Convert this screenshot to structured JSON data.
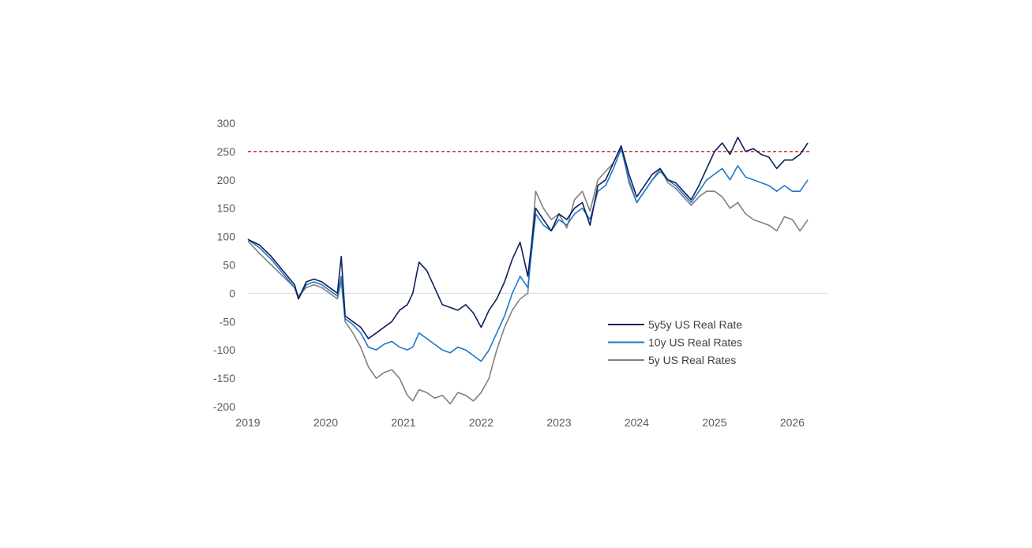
{
  "chart_data": {
    "type": "line",
    "title": "",
    "xlabel": "",
    "ylabel": "",
    "xlim": [
      2019.0,
      2026.25
    ],
    "ylim": [
      -200,
      300
    ],
    "yticks": [
      "300",
      "250",
      "200",
      "150",
      "100",
      "50",
      "0",
      "-50",
      "-100",
      "-150",
      "-200"
    ],
    "xticks": [
      "2019",
      "2020",
      "2021",
      "2022",
      "2023",
      "2024",
      "2025",
      "2026"
    ],
    "grid": false,
    "zero_line": true,
    "reference_line": {
      "value": 250,
      "style": "dashed",
      "color": "#c00000"
    },
    "legend": {
      "placement": "lower-right-inside"
    },
    "series": [
      {
        "name": "5y5y US Real Rate",
        "color": "#0b1f5c",
        "x": [
          2019.0,
          2019.15,
          2019.3,
          2019.45,
          2019.6,
          2019.65,
          2019.75,
          2019.85,
          2019.95,
          2020.05,
          2020.15,
          2020.2,
          2020.25,
          2020.35,
          2020.45,
          2020.55,
          2020.65,
          2020.75,
          2020.85,
          2020.95,
          2021.05,
          2021.12,
          2021.2,
          2021.3,
          2021.4,
          2021.5,
          2021.6,
          2021.7,
          2021.8,
          2021.9,
          2022.0,
          2022.1,
          2022.2,
          2022.3,
          2022.4,
          2022.5,
          2022.6,
          2022.7,
          2022.8,
          2022.9,
          2023.0,
          2023.1,
          2023.2,
          2023.3,
          2023.4,
          2023.5,
          2023.6,
          2023.7,
          2023.8,
          2023.9,
          2024.0,
          2024.1,
          2024.2,
          2024.3,
          2024.4,
          2024.5,
          2024.6,
          2024.7,
          2024.8,
          2024.9,
          2025.0,
          2025.1,
          2025.2,
          2025.3,
          2025.4,
          2025.5,
          2025.6,
          2025.7,
          2025.8,
          2025.9,
          2026.0,
          2026.1,
          2026.2
        ],
        "values": [
          95,
          85,
          65,
          40,
          15,
          -10,
          20,
          25,
          20,
          10,
          0,
          65,
          -40,
          -50,
          -60,
          -80,
          -70,
          -60,
          -50,
          -30,
          -20,
          0,
          55,
          40,
          10,
          -20,
          -25,
          -30,
          -20,
          -35,
          -60,
          -30,
          -10,
          20,
          60,
          90,
          30,
          150,
          130,
          110,
          140,
          130,
          150,
          160,
          120,
          190,
          200,
          230,
          260,
          210,
          170,
          190,
          210,
          220,
          200,
          195,
          180,
          165,
          190,
          220,
          250,
          265,
          245,
          275,
          250,
          255,
          245,
          240,
          220,
          235,
          235,
          245,
          265
        ]
      },
      {
        "name": "10y US Real Rates",
        "color": "#1e78c8",
        "x": [
          2019.0,
          2019.15,
          2019.3,
          2019.45,
          2019.6,
          2019.65,
          2019.75,
          2019.85,
          2019.95,
          2020.05,
          2020.15,
          2020.2,
          2020.25,
          2020.35,
          2020.45,
          2020.55,
          2020.65,
          2020.75,
          2020.85,
          2020.95,
          2021.05,
          2021.12,
          2021.2,
          2021.3,
          2021.4,
          2021.5,
          2021.6,
          2021.7,
          2021.8,
          2021.9,
          2022.0,
          2022.1,
          2022.2,
          2022.3,
          2022.4,
          2022.5,
          2022.6,
          2022.7,
          2022.8,
          2022.9,
          2023.0,
          2023.1,
          2023.2,
          2023.3,
          2023.4,
          2023.5,
          2023.6,
          2023.7,
          2023.8,
          2023.9,
          2024.0,
          2024.1,
          2024.2,
          2024.3,
          2024.4,
          2024.5,
          2024.6,
          2024.7,
          2024.8,
          2024.9,
          2025.0,
          2025.1,
          2025.2,
          2025.3,
          2025.4,
          2025.5,
          2025.6,
          2025.7,
          2025.8,
          2025.9,
          2026.0,
          2026.1,
          2026.2
        ],
        "values": [
          95,
          80,
          60,
          35,
          10,
          -10,
          15,
          20,
          15,
          5,
          -5,
          30,
          -45,
          -55,
          -70,
          -95,
          -100,
          -90,
          -85,
          -95,
          -100,
          -95,
          -70,
          -80,
          -90,
          -100,
          -105,
          -95,
          -100,
          -110,
          -120,
          -100,
          -70,
          -40,
          0,
          30,
          10,
          140,
          120,
          110,
          130,
          120,
          140,
          150,
          130,
          180,
          190,
          220,
          255,
          200,
          160,
          180,
          200,
          215,
          200,
          190,
          175,
          160,
          180,
          200,
          210,
          220,
          200,
          225,
          205,
          200,
          195,
          190,
          180,
          190,
          180,
          180,
          200
        ]
      },
      {
        "name": "5y US Real Rates",
        "color": "#808080",
        "x": [
          2019.0,
          2019.15,
          2019.3,
          2019.45,
          2019.6,
          2019.65,
          2019.75,
          2019.85,
          2019.95,
          2020.05,
          2020.15,
          2020.2,
          2020.25,
          2020.35,
          2020.45,
          2020.55,
          2020.65,
          2020.75,
          2020.85,
          2020.95,
          2021.05,
          2021.12,
          2021.2,
          2021.3,
          2021.4,
          2021.5,
          2021.6,
          2021.7,
          2021.8,
          2021.9,
          2022.0,
          2022.1,
          2022.2,
          2022.3,
          2022.4,
          2022.5,
          2022.6,
          2022.7,
          2022.8,
          2022.9,
          2023.0,
          2023.1,
          2023.2,
          2023.3,
          2023.4,
          2023.5,
          2023.6,
          2023.7,
          2023.8,
          2023.9,
          2024.0,
          2024.1,
          2024.2,
          2024.3,
          2024.4,
          2024.5,
          2024.6,
          2024.7,
          2024.8,
          2024.9,
          2025.0,
          2025.1,
          2025.2,
          2025.3,
          2025.4,
          2025.5,
          2025.6,
          2025.7,
          2025.8,
          2025.9,
          2026.0,
          2026.1,
          2026.2
        ],
        "values": [
          92,
          70,
          50,
          30,
          10,
          -5,
          10,
          15,
          10,
          0,
          -10,
          20,
          -50,
          -70,
          -95,
          -130,
          -150,
          -140,
          -135,
          -150,
          -180,
          -190,
          -170,
          -175,
          -185,
          -180,
          -195,
          -175,
          -180,
          -190,
          -175,
          -150,
          -100,
          -60,
          -30,
          -10,
          0,
          180,
          150,
          130,
          140,
          115,
          165,
          180,
          145,
          200,
          215,
          230,
          260,
          195,
          160,
          180,
          200,
          220,
          195,
          185,
          170,
          155,
          170,
          180,
          180,
          170,
          150,
          160,
          140,
          130,
          125,
          120,
          110,
          135,
          130,
          110,
          130
        ]
      }
    ]
  }
}
